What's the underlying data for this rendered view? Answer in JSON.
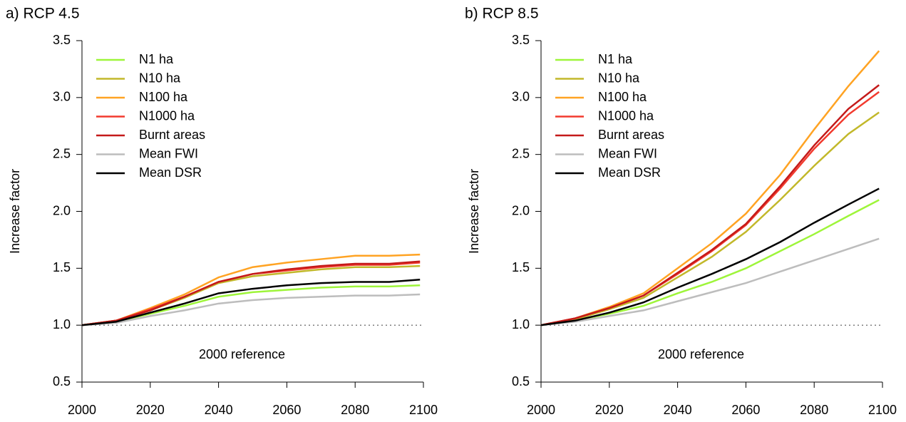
{
  "chart_data": [
    {
      "type": "line",
      "title": "a) RCP 4.5",
      "y_label": "Increase factor",
      "annotation": "2000 reference",
      "reference_line": 1,
      "x": [
        2000,
        2010,
        2020,
        2030,
        2040,
        2050,
        2060,
        2070,
        2080,
        2090,
        2099
      ],
      "xlim": [
        2000,
        2100
      ],
      "xticks": [
        2000,
        2020,
        2040,
        2060,
        2080,
        2100
      ],
      "ylim": [
        0.5,
        3.5
      ],
      "yticks": [
        0.5,
        {
          "value": 1,
          "label": "1.0"
        },
        1.5,
        {
          "value": 2,
          "label": "2.0"
        },
        2.5,
        {
          "value": 3,
          "label": "3.0"
        },
        3.5
      ],
      "legend": "upper left",
      "series": [
        {
          "name": "N1 ha",
          "color": "#9ef53a",
          "values": [
            1.0,
            1.03,
            1.1,
            1.17,
            1.25,
            1.29,
            1.31,
            1.33,
            1.34,
            1.34,
            1.35
          ]
        },
        {
          "name": "N10 ha",
          "color": "#c2b82a",
          "values": [
            1.0,
            1.04,
            1.13,
            1.24,
            1.37,
            1.43,
            1.46,
            1.49,
            1.51,
            1.51,
            1.52
          ]
        },
        {
          "name": "N100 ha",
          "color": "#ffa323",
          "values": [
            1.0,
            1.04,
            1.15,
            1.27,
            1.42,
            1.51,
            1.55,
            1.58,
            1.61,
            1.61,
            1.62
          ]
        },
        {
          "name": "N1000 ha",
          "color": "#f23a2e",
          "values": [
            1.0,
            1.04,
            1.14,
            1.25,
            1.38,
            1.45,
            1.48,
            1.51,
            1.53,
            1.53,
            1.55
          ]
        },
        {
          "name": "Burnt areas",
          "color": "#c41a1a",
          "values": [
            1.0,
            1.04,
            1.13,
            1.25,
            1.38,
            1.45,
            1.49,
            1.52,
            1.54,
            1.54,
            1.56
          ]
        },
        {
          "name": "Mean FWI",
          "color": "#bdbdbd",
          "values": [
            1.0,
            1.02,
            1.08,
            1.13,
            1.19,
            1.22,
            1.24,
            1.25,
            1.26,
            1.26,
            1.27
          ]
        },
        {
          "name": "Mean DSR",
          "color": "#000000",
          "values": [
            1.0,
            1.03,
            1.11,
            1.19,
            1.28,
            1.32,
            1.35,
            1.37,
            1.38,
            1.38,
            1.4
          ]
        }
      ]
    },
    {
      "type": "line",
      "title": "b) RCP 8.5",
      "y_label": "Increase factor",
      "annotation": "2000 reference",
      "reference_line": 1,
      "x": [
        2000,
        2010,
        2020,
        2030,
        2040,
        2050,
        2060,
        2070,
        2080,
        2090,
        2099
      ],
      "xlim": [
        2000,
        2100
      ],
      "xticks": [
        2000,
        2020,
        2040,
        2060,
        2080,
        2100
      ],
      "ylim": [
        0.5,
        3.5
      ],
      "yticks": [
        0.5,
        {
          "value": 1,
          "label": "1.0"
        },
        1.5,
        {
          "value": 2,
          "label": "2.0"
        },
        2.5,
        {
          "value": 3,
          "label": "3.0"
        },
        3.5
      ],
      "legend": "upper left",
      "series": [
        {
          "name": "N1 ha",
          "color": "#9ef53a",
          "values": [
            1.0,
            1.04,
            1.1,
            1.17,
            1.28,
            1.38,
            1.5,
            1.65,
            1.8,
            1.96,
            2.1
          ]
        },
        {
          "name": "N10 ha",
          "color": "#c2b82a",
          "values": [
            1.0,
            1.05,
            1.14,
            1.24,
            1.42,
            1.6,
            1.82,
            2.1,
            2.4,
            2.68,
            2.87
          ]
        },
        {
          "name": "N100 ha",
          "color": "#ffa323",
          "values": [
            1.0,
            1.06,
            1.16,
            1.28,
            1.5,
            1.72,
            1.98,
            2.32,
            2.72,
            3.1,
            3.41
          ]
        },
        {
          "name": "N1000 ha",
          "color": "#f23a2e",
          "values": [
            1.0,
            1.06,
            1.15,
            1.26,
            1.45,
            1.65,
            1.88,
            2.2,
            2.55,
            2.85,
            3.05
          ]
        },
        {
          "name": "Burnt areas",
          "color": "#c41a1a",
          "values": [
            1.0,
            1.06,
            1.15,
            1.26,
            1.46,
            1.66,
            1.89,
            2.22,
            2.58,
            2.9,
            3.11
          ]
        },
        {
          "name": "Mean FWI",
          "color": "#bdbdbd",
          "values": [
            1.0,
            1.03,
            1.08,
            1.13,
            1.21,
            1.29,
            1.37,
            1.47,
            1.57,
            1.67,
            1.76
          ]
        },
        {
          "name": "Mean DSR",
          "color": "#000000",
          "values": [
            1.0,
            1.04,
            1.11,
            1.2,
            1.33,
            1.45,
            1.58,
            1.73,
            1.9,
            2.06,
            2.2
          ]
        }
      ]
    }
  ]
}
